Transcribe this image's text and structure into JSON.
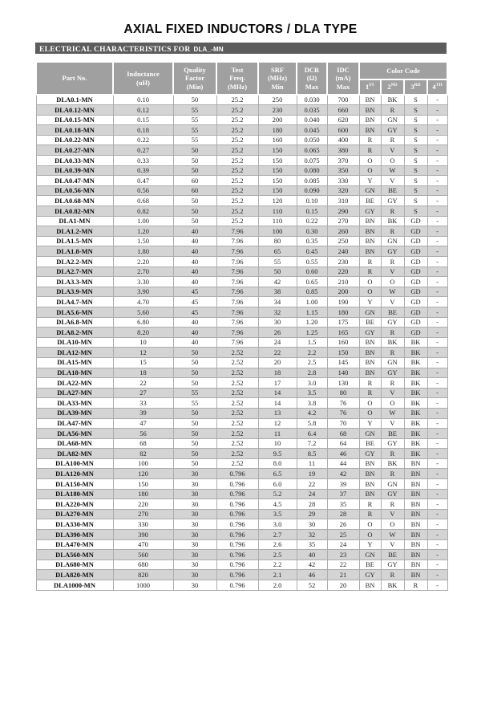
{
  "title": "AXIAL FIXED INDUCTORS / DLA TYPE",
  "section": {
    "title": "ELECTRICAL CHARACTERISTICS FOR",
    "part_family": "DLA_-MN"
  },
  "colors": {
    "section_bar_bg": "#5c5c5c",
    "header_bg": "#a0a0a0",
    "stripe_bg": "#d4d4d4",
    "grid_line": "#adadad",
    "header_text": "#ffffff",
    "body_text": "#1f1f1f"
  },
  "table": {
    "headers": {
      "part_no": "Part No.",
      "inductance": "Inductance\n(uH)",
      "quality_factor": "Quality\nFactor\n(Min)",
      "test_freq": "Test\nFreq.\n(MHz)",
      "srf": "SRF\n(MHz)\nMin",
      "dcr": "DCR\n(Ω)\nMax",
      "idc": "IDC\n(mA)\nMax",
      "color_code": "Color Code",
      "color_positions": [
        {
          "base": "1",
          "sup": "ST"
        },
        {
          "base": "2",
          "sup": "ND"
        },
        {
          "base": "3",
          "sup": "RD"
        },
        {
          "base": "4",
          "sup": "TH"
        }
      ]
    },
    "rows": [
      {
        "part": "DLA0.1-MN",
        "l": "0.10",
        "q": "50",
        "f": "25.2",
        "srf": "250",
        "dcr": "0.030",
        "idc": "700",
        "c1": "BN",
        "c2": "BK",
        "c3": "S",
        "c4": "-"
      },
      {
        "part": "DLA0.12-MN",
        "l": "0.12",
        "q": "55",
        "f": "25.2",
        "srf": "230",
        "dcr": "0.035",
        "idc": "660",
        "c1": "BN",
        "c2": "R",
        "c3": "S",
        "c4": "-"
      },
      {
        "part": "DLA0.15-MN",
        "l": "0.15",
        "q": "55",
        "f": "25.2",
        "srf": "200",
        "dcr": "0.040",
        "idc": "620",
        "c1": "BN",
        "c2": "GN",
        "c3": "S",
        "c4": "-"
      },
      {
        "part": "DLA0.18-MN",
        "l": "0.18",
        "q": "55",
        "f": "25.2",
        "srf": "180",
        "dcr": "0.045",
        "idc": "600",
        "c1": "BN",
        "c2": "GY",
        "c3": "S",
        "c4": "-"
      },
      {
        "part": "DLA0.22-MN",
        "l": "0.22",
        "q": "55",
        "f": "25.2",
        "srf": "160",
        "dcr": "0.050",
        "idc": "400",
        "c1": "R",
        "c2": "R",
        "c3": "S",
        "c4": "-"
      },
      {
        "part": "DLA0.27-MN",
        "l": "0.27",
        "q": "50",
        "f": "25.2",
        "srf": "150",
        "dcr": "0.065",
        "idc": "380",
        "c1": "R",
        "c2": "V",
        "c3": "S",
        "c4": "-"
      },
      {
        "part": "DLA0.33-MN",
        "l": "0.33",
        "q": "50",
        "f": "25.2",
        "srf": "150",
        "dcr": "0.075",
        "idc": "370",
        "c1": "O",
        "c2": "O",
        "c3": "S",
        "c4": "-"
      },
      {
        "part": "DLA0.39-MN",
        "l": "0.39",
        "q": "50",
        "f": "25.2",
        "srf": "150",
        "dcr": "0.080",
        "idc": "350",
        "c1": "O",
        "c2": "W",
        "c3": "S",
        "c4": "-"
      },
      {
        "part": "DLA0.47-MN",
        "l": "0.47",
        "q": "60",
        "f": "25.2",
        "srf": "150",
        "dcr": "0.085",
        "idc": "330",
        "c1": "Y",
        "c2": "V",
        "c3": "S",
        "c4": "-"
      },
      {
        "part": "DLA0.56-MN",
        "l": "0.56",
        "q": "60",
        "f": "25.2",
        "srf": "150",
        "dcr": "0.090",
        "idc": "320",
        "c1": "GN",
        "c2": "BE",
        "c3": "S",
        "c4": "-"
      },
      {
        "part": "DLA0.68-MN",
        "l": "0.68",
        "q": "50",
        "f": "25.2",
        "srf": "120",
        "dcr": "0.10",
        "idc": "310",
        "c1": "BE",
        "c2": "GY",
        "c3": "S",
        "c4": "-"
      },
      {
        "part": "DLA0.82-MN",
        "l": "0.82",
        "q": "50",
        "f": "25.2",
        "srf": "110",
        "dcr": "0.15",
        "idc": "290",
        "c1": "GY",
        "c2": "R",
        "c3": "S",
        "c4": "-"
      },
      {
        "part": "DLA1-MN",
        "l": "1.00",
        "q": "50",
        "f": "25.2",
        "srf": "110",
        "dcr": "0.22",
        "idc": "270",
        "c1": "BN",
        "c2": "BK",
        "c3": "GD",
        "c4": "-"
      },
      {
        "part": "DLA1.2-MN",
        "l": "1.20",
        "q": "40",
        "f": "7.96",
        "srf": "100",
        "dcr": "0.30",
        "idc": "260",
        "c1": "BN",
        "c2": "R",
        "c3": "GD",
        "c4": "-"
      },
      {
        "part": "DLA1.5-MN",
        "l": "1.50",
        "q": "40",
        "f": "7.96",
        "srf": "80",
        "dcr": "0.35",
        "idc": "250",
        "c1": "BN",
        "c2": "GN",
        "c3": "GD",
        "c4": "-"
      },
      {
        "part": "DLA1.8-MN",
        "l": "1.80",
        "q": "40",
        "f": "7.96",
        "srf": "65",
        "dcr": "0.45",
        "idc": "240",
        "c1": "BN",
        "c2": "GY",
        "c3": "GD",
        "c4": "-"
      },
      {
        "part": "DLA2.2-MN",
        "l": "2.20",
        "q": "40",
        "f": "7.96",
        "srf": "55",
        "dcr": "0.55",
        "idc": "230",
        "c1": "R",
        "c2": "R",
        "c3": "GD",
        "c4": "-"
      },
      {
        "part": "DLA2.7-MN",
        "l": "2.70",
        "q": "40",
        "f": "7.96",
        "srf": "50",
        "dcr": "0.60",
        "idc": "220",
        "c1": "R",
        "c2": "V",
        "c3": "GD",
        "c4": "-"
      },
      {
        "part": "DLA3.3-MN",
        "l": "3.30",
        "q": "40",
        "f": "7.96",
        "srf": "42",
        "dcr": "0.65",
        "idc": "210",
        "c1": "O",
        "c2": "O",
        "c3": "GD",
        "c4": "-"
      },
      {
        "part": "DLA3.9-MN",
        "l": "3.90",
        "q": "45",
        "f": "7.96",
        "srf": "38",
        "dcr": "0.85",
        "idc": "200",
        "c1": "O",
        "c2": "W",
        "c3": "GD",
        "c4": "-"
      },
      {
        "part": "DLA4.7-MN",
        "l": "4.70",
        "q": "45",
        "f": "7.96",
        "srf": "34",
        "dcr": "1.00",
        "idc": "190",
        "c1": "Y",
        "c2": "V",
        "c3": "GD",
        "c4": "-"
      },
      {
        "part": "DLA5.6-MN",
        "l": "5.60",
        "q": "45",
        "f": "7.96",
        "srf": "32",
        "dcr": "1.15",
        "idc": "180",
        "c1": "GN",
        "c2": "BE",
        "c3": "GD",
        "c4": "-"
      },
      {
        "part": "DLA6.8-MN",
        "l": "6.80",
        "q": "40",
        "f": "7.96",
        "srf": "30",
        "dcr": "1.20",
        "idc": "175",
        "c1": "BE",
        "c2": "GY",
        "c3": "GD",
        "c4": "-"
      },
      {
        "part": "DLA8.2-MN",
        "l": "8.20",
        "q": "40",
        "f": "7.96",
        "srf": "26",
        "dcr": "1.25",
        "idc": "165",
        "c1": "GY",
        "c2": "R",
        "c3": "GD",
        "c4": "-"
      },
      {
        "part": "DLA10-MN",
        "l": "10",
        "q": "40",
        "f": "7.96",
        "srf": "24",
        "dcr": "1.5",
        "idc": "160",
        "c1": "BN",
        "c2": "BK",
        "c3": "BK",
        "c4": "-"
      },
      {
        "part": "DLA12-MN",
        "l": "12",
        "q": "50",
        "f": "2.52",
        "srf": "22",
        "dcr": "2.2",
        "idc": "150",
        "c1": "BN",
        "c2": "R",
        "c3": "BK",
        "c4": "-"
      },
      {
        "part": "DLA15-MN",
        "l": "15",
        "q": "50",
        "f": "2.52",
        "srf": "20",
        "dcr": "2.5",
        "idc": "145",
        "c1": "BN",
        "c2": "GN",
        "c3": "BK",
        "c4": "-"
      },
      {
        "part": "DLA18-MN",
        "l": "18",
        "q": "50",
        "f": "2.52",
        "srf": "18",
        "dcr": "2.8",
        "idc": "140",
        "c1": "BN",
        "c2": "GY",
        "c3": "BK",
        "c4": "-"
      },
      {
        "part": "DLA22-MN",
        "l": "22",
        "q": "50",
        "f": "2.52",
        "srf": "17",
        "dcr": "3.0",
        "idc": "130",
        "c1": "R",
        "c2": "R",
        "c3": "BK",
        "c4": "-"
      },
      {
        "part": "DLA27-MN",
        "l": "27",
        "q": "55",
        "f": "2.52",
        "srf": "14",
        "dcr": "3.5",
        "idc": "80",
        "c1": "R",
        "c2": "V",
        "c3": "BK",
        "c4": "-"
      },
      {
        "part": "DLA33-MN",
        "l": "33",
        "q": "55",
        "f": "2.52",
        "srf": "14",
        "dcr": "3.8",
        "idc": "76",
        "c1": "O",
        "c2": "O",
        "c3": "BK",
        "c4": "-"
      },
      {
        "part": "DLA39-MN",
        "l": "39",
        "q": "50",
        "f": "2.52",
        "srf": "13",
        "dcr": "4.2",
        "idc": "76",
        "c1": "O",
        "c2": "W",
        "c3": "BK",
        "c4": "-"
      },
      {
        "part": "DLA47-MN",
        "l": "47",
        "q": "50",
        "f": "2.52",
        "srf": "12",
        "dcr": "5.8",
        "idc": "70",
        "c1": "Y",
        "c2": "V",
        "c3": "BK",
        "c4": "-"
      },
      {
        "part": "DLA56-MN",
        "l": "56",
        "q": "50",
        "f": "2.52",
        "srf": "11",
        "dcr": "6.4",
        "idc": "68",
        "c1": "GN",
        "c2": "BE",
        "c3": "BK",
        "c4": "-"
      },
      {
        "part": "DLA68-MN",
        "l": "68",
        "q": "50",
        "f": "2.52",
        "srf": "10",
        "dcr": "7.2",
        "idc": "64",
        "c1": "BE",
        "c2": "GY",
        "c3": "BK",
        "c4": "-"
      },
      {
        "part": "DLA82-MN",
        "l": "82",
        "q": "50",
        "f": "2.52",
        "srf": "9.5",
        "dcr": "8.5",
        "idc": "46",
        "c1": "GY",
        "c2": "R",
        "c3": "BK",
        "c4": "-"
      },
      {
        "part": "DLA100-MN",
        "l": "100",
        "q": "50",
        "f": "2.52",
        "srf": "8.0",
        "dcr": "11",
        "idc": "44",
        "c1": "BN",
        "c2": "BK",
        "c3": "BN",
        "c4": "-"
      },
      {
        "part": "DLA120-MN",
        "l": "120",
        "q": "30",
        "f": "0.796",
        "srf": "6.5",
        "dcr": "19",
        "idc": "42",
        "c1": "BN",
        "c2": "R",
        "c3": "BN",
        "c4": "-"
      },
      {
        "part": "DLA150-MN",
        "l": "150",
        "q": "30",
        "f": "0.796",
        "srf": "6.0",
        "dcr": "22",
        "idc": "39",
        "c1": "BN",
        "c2": "GN",
        "c3": "BN",
        "c4": "-"
      },
      {
        "part": "DLA180-MN",
        "l": "180",
        "q": "30",
        "f": "0.796",
        "srf": "5.2",
        "dcr": "24",
        "idc": "37",
        "c1": "BN",
        "c2": "GY",
        "c3": "BN",
        "c4": "-"
      },
      {
        "part": "DLA220-MN",
        "l": "220",
        "q": "30",
        "f": "0.796",
        "srf": "4.5",
        "dcr": "28",
        "idc": "35",
        "c1": "R",
        "c2": "R",
        "c3": "BN",
        "c4": "-"
      },
      {
        "part": "DLA270-MN",
        "l": "270",
        "q": "30",
        "f": "0.796",
        "srf": "3.5",
        "dcr": "29",
        "idc": "28",
        "c1": "R",
        "c2": "V",
        "c3": "BN",
        "c4": "-"
      },
      {
        "part": "DLA330-MN",
        "l": "330",
        "q": "30",
        "f": "0.796",
        "srf": "3.0",
        "dcr": "30",
        "idc": "26",
        "c1": "O",
        "c2": "O",
        "c3": "BN",
        "c4": "-"
      },
      {
        "part": "DLA390-MN",
        "l": "390",
        "q": "30",
        "f": "0.796",
        "srf": "2.7",
        "dcr": "32",
        "idc": "25",
        "c1": "O",
        "c2": "W",
        "c3": "BN",
        "c4": "-"
      },
      {
        "part": "DLA470-MN",
        "l": "470",
        "q": "30",
        "f": "0.796",
        "srf": "2.6",
        "dcr": "35",
        "idc": "24",
        "c1": "Y",
        "c2": "V",
        "c3": "BN",
        "c4": "-"
      },
      {
        "part": "DLA560-MN",
        "l": "560",
        "q": "30",
        "f": "0.796",
        "srf": "2.5",
        "dcr": "40",
        "idc": "23",
        "c1": "GN",
        "c2": "BE",
        "c3": "BN",
        "c4": "-"
      },
      {
        "part": "DLA680-MN",
        "l": "680",
        "q": "30",
        "f": "0.796",
        "srf": "2.2",
        "dcr": "42",
        "idc": "22",
        "c1": "BE",
        "c2": "GY",
        "c3": "BN",
        "c4": "-"
      },
      {
        "part": "DLA820-MN",
        "l": "820",
        "q": "30",
        "f": "0.796",
        "srf": "2.1",
        "dcr": "46",
        "idc": "21",
        "c1": "GY",
        "c2": "R",
        "c3": "BN",
        "c4": "-"
      },
      {
        "part": "DLA1000-MN",
        "l": "1000",
        "q": "30",
        "f": "0.796",
        "srf": "2.0",
        "dcr": "52",
        "idc": "20",
        "c1": "BN",
        "c2": "BK",
        "c3": "R",
        "c4": "-"
      }
    ]
  }
}
